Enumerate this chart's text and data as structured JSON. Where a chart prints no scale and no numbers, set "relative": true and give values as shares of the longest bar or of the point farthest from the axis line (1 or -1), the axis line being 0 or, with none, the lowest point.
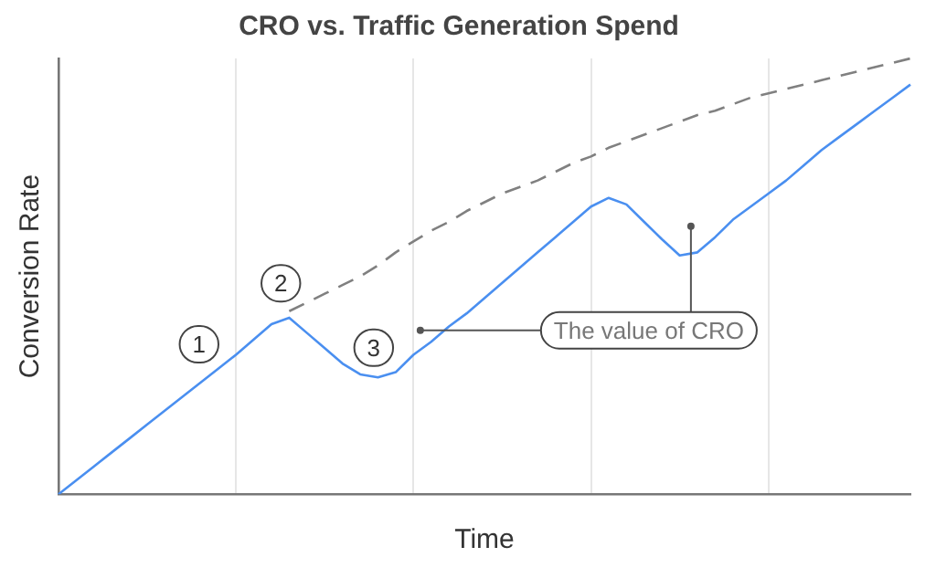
{
  "chart_data": {
    "type": "line",
    "title": "CRO vs. Traffic Generation Spend",
    "xlabel": "Time",
    "ylabel": "Conversion Rate",
    "relative": true,
    "categories": [
      null,
      null,
      null,
      null,
      null,
      null,
      null,
      null,
      null,
      null,
      null,
      null,
      null,
      null,
      null,
      null,
      null,
      null,
      null,
      null,
      null,
      null,
      null,
      null,
      null,
      null,
      null,
      null,
      null,
      null,
      null,
      null,
      null,
      null,
      null,
      null,
      null,
      null,
      null,
      null,
      null,
      null,
      null,
      null,
      null,
      null,
      null,
      null,
      null
    ],
    "grid": "x",
    "legend": false,
    "marker": "none",
    "series": [
      {
        "color": "#4a8ff0",
        "line_style": "solid",
        "values": [
          0,
          0.032,
          0.064,
          0.096,
          0.128,
          0.16,
          0.192,
          0.224,
          0.256,
          0.288,
          0.32,
          0.355,
          0.39,
          0.405,
          0.37,
          0.335,
          0.3,
          0.275,
          0.268,
          0.28,
          0.32,
          0.35,
          0.385,
          0.415,
          0.45,
          0.485,
          0.52,
          0.555,
          0.59,
          0.625,
          0.66,
          0.68,
          0.665,
          0.625,
          0.585,
          0.548,
          0.555,
          0.59,
          0.63,
          0.66,
          0.69,
          0.72,
          0.755,
          0.79,
          0.82,
          0.85,
          0.88,
          0.91,
          0.94
        ]
      },
      {
        "color": "#808080",
        "line_style": "dashed",
        "values": [
          null,
          null,
          null,
          null,
          null,
          null,
          null,
          null,
          null,
          null,
          null,
          null,
          null,
          0.42,
          0.44,
          0.46,
          0.48,
          0.5,
          0.525,
          0.555,
          0.58,
          0.605,
          0.625,
          0.65,
          0.67,
          0.69,
          0.705,
          0.72,
          0.74,
          0.76,
          0.775,
          0.795,
          0.81,
          0.825,
          0.84,
          0.855,
          0.87,
          0.88,
          0.895,
          0.91,
          0.92,
          0.93,
          0.94,
          0.95,
          0.96,
          0.97,
          0.98,
          0.99,
          1.0
        ]
      }
    ],
    "annotations": [
      "1",
      "2",
      "3",
      "The value of CRO"
    ]
  }
}
